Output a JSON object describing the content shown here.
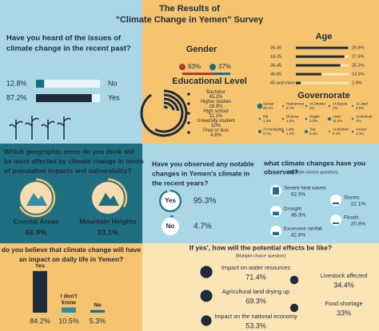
{
  "title": [
    "The Results of",
    "\"Climate Change in Yemen\" Survey"
  ],
  "heard": {
    "question": [
      "Have you heard of the issues of",
      "climate change in the recent past?"
    ],
    "items": [
      {
        "label": "No",
        "value": 12.8,
        "value_label": "12.8%"
      },
      {
        "label": "Yes",
        "value": 87.2,
        "value_label": "87.2%"
      }
    ]
  },
  "gender": {
    "title": "Gender",
    "items": [
      {
        "value": 63,
        "value_label": "63%"
      },
      {
        "value": 37,
        "value_label": "37%"
      }
    ]
  },
  "education": {
    "title": "Educational Level",
    "items": [
      {
        "label": "Bachelor",
        "value": 45.2,
        "value_label": "45.2%"
      },
      {
        "label": "Higher studies",
        "value": 28.9,
        "value_label": "28.9%"
      },
      {
        "label": "High school",
        "value": 11.1,
        "value_label": "11.1%"
      },
      {
        "label": "University student",
        "value": 10,
        "value_label": "10%"
      },
      {
        "label": "Prep or less",
        "value": 4.8,
        "value_label": "4.8%"
      }
    ]
  },
  "age": {
    "title": "Age",
    "items": [
      {
        "label": "26-35",
        "value": 29.8,
        "value_label": "29.8%"
      },
      {
        "label": "18-25",
        "value": 27.6,
        "value_label": "27.6%"
      },
      {
        "label": "36-45",
        "value": 25.3,
        "value_label": "25.3%"
      },
      {
        "label": "46-65",
        "value": 14.5,
        "value_label": "14.5%"
      },
      {
        "label": "65 and more",
        "value": 2.8,
        "value_label": "2.8%"
      }
    ]
  },
  "governorate": {
    "title": "Governorate",
    "items": [
      {
        "label": "Sanaa",
        "value": 40.1,
        "value_label": "40.1%"
      },
      {
        "label": "Hadramout",
        "value": 0.7,
        "value_label": "0.7%"
      },
      {
        "label": "Al-Dhalea",
        "value": 1,
        "value_label": "1%"
      },
      {
        "label": "Al-Bayda",
        "value": 1,
        "value_label": "1%"
      },
      {
        "label": "Al-Jawf",
        "value": 0.6,
        "value_label": "0.6%"
      },
      {
        "label": "Ibb",
        "value": 1.3,
        "value_label": "1.3%"
      },
      {
        "label": "Dhamar",
        "value": 1.3,
        "value_label": "1.3%"
      },
      {
        "label": "Hajjah",
        "value": 1.3,
        "value_label": "1.3%"
      },
      {
        "label": "Aden",
        "value": 11.3,
        "value_label": "11.3%"
      },
      {
        "label": "Al-Mahrah",
        "value": 1,
        "value_label": "1%"
      },
      {
        "label": "Al-Hudaydah",
        "value": 9.7,
        "value_label": "9.7%"
      },
      {
        "label": "Lahij",
        "value": 1.3,
        "value_label": "1.3%"
      },
      {
        "label": "Taiz",
        "value": 8.3,
        "value_label": "8.3%"
      },
      {
        "label": "Al-Mahwit",
        "value": 0.3,
        "value_label": "0.3%"
      },
      {
        "label": "Amran",
        "value": 1.3,
        "value_label": "1.3%"
      }
    ]
  },
  "areas": {
    "question": [
      "Which geographic areas do you think will",
      "be most affected by climate change in terms",
      "of population impacts and vulnerability?"
    ],
    "items": [
      {
        "label": "Coastal Areas",
        "value": 66.9,
        "value_label": "66.9%"
      },
      {
        "label": "Mountain Heights",
        "value": 33.1,
        "value_label": "33.1%"
      }
    ]
  },
  "noticed": {
    "question": [
      "Have you observed any notable",
      "changes in Yemen's climate in",
      "the recent years?"
    ],
    "items": [
      {
        "label": "Yes",
        "value": 95.3,
        "value_label": "95.3%"
      },
      {
        "label": "No",
        "value": 4.7,
        "value_label": "4.7%"
      }
    ]
  },
  "changes": {
    "question": [
      "what climate changes have you",
      "observed?"
    ],
    "note": "(Multiple-choice question)",
    "items": [
      {
        "label": "Severe heat waves",
        "value": 92.3,
        "value_label": "92.3%"
      },
      {
        "label": "Drought",
        "value": 46.3,
        "value_label": "46.3%"
      },
      {
        "label": "Excessive rainfall",
        "value": 42.8,
        "value_label": "42.8%"
      },
      {
        "label": "Storms",
        "value": 22.1,
        "value_label": "22.1%"
      },
      {
        "label": "Floods",
        "value": 20.8,
        "value_label": "20.8%"
      }
    ]
  },
  "impact": {
    "question": [
      "do you believe that climate change will have",
      "an impact on daily life in Yemen?"
    ],
    "items": [
      {
        "label": [
          "Yes"
        ],
        "value": 84.2,
        "value_label": "84.2%"
      },
      {
        "label": [
          "I don't",
          "know"
        ],
        "value": 10.5,
        "value_label": "10.5%"
      },
      {
        "label": [
          "No"
        ],
        "value": 5.3,
        "value_label": "5.3%"
      }
    ]
  },
  "effects": {
    "question": "If yes', how will the potential effects be like?",
    "note": "(Multiple-choice question)",
    "items": [
      {
        "label": "Impact on water resources",
        "value": 71.4,
        "value_label": "71.4%"
      },
      {
        "label": "Agricultural land drying up",
        "value": 69.3,
        "value_label": "69.3%"
      },
      {
        "label": "Impact on the national economy",
        "value": 53.3,
        "value_label": "53.3%"
      },
      {
        "label": "Livestock affected",
        "value": 34.4,
        "value_label": "34.4%"
      },
      {
        "label": "Food shortage",
        "value": 33,
        "value_label": "33%"
      }
    ]
  }
}
